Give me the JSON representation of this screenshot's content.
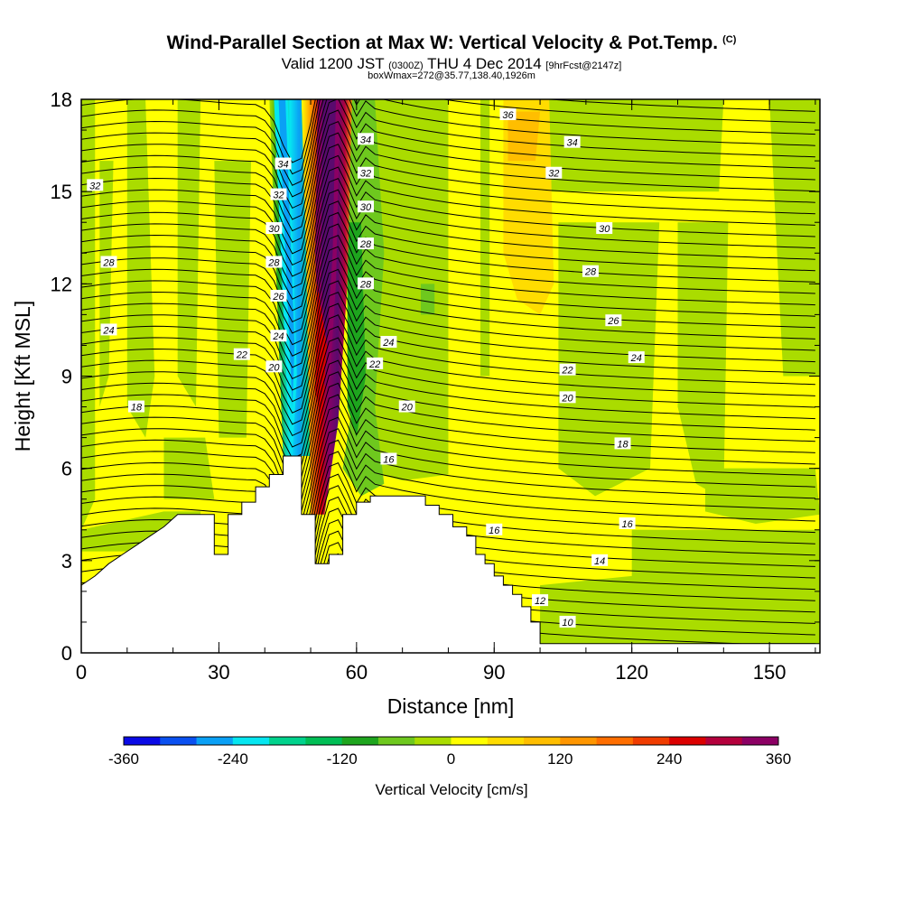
{
  "header": {
    "title": "Wind-Parallel Section at Max W: Vertical Velocity & Pot.Temp.",
    "copyright": "(C)",
    "valid_label": "Valid 1200 JST",
    "zulu": "(0300Z)",
    "date": "THU 4 Dec 2014",
    "forecast": "[9hrFcst@2147z]",
    "boxinfo": "boxWmax=272@35.77,138.40,1926m"
  },
  "chart_data": {
    "type": "heatmap",
    "xlabel": "Distance [nm]",
    "ylabel": "Height [Kft MSL]",
    "xlim": [
      0,
      161
    ],
    "ylim": [
      0,
      18
    ],
    "xticks": [
      "0",
      "30",
      "60",
      "90",
      "120",
      "150"
    ],
    "yticks": [
      "0",
      "3",
      "6",
      "9",
      "12",
      "15",
      "18"
    ],
    "colorbar": {
      "label": "Vertical Velocity [cm/s]",
      "ticks": [
        "-360",
        "-240",
        "-120",
        "0",
        "120",
        "240",
        "360"
      ],
      "levels": [
        -360,
        -320,
        -280,
        -240,
        -200,
        -160,
        -120,
        -80,
        -40,
        0,
        40,
        80,
        120,
        160,
        200,
        240,
        280,
        320,
        360
      ],
      "colors": [
        "#0a0ae6",
        "#0a50f0",
        "#0aa0f5",
        "#06e6f0",
        "#00d28c",
        "#00be55",
        "#1ea51e",
        "#6ec81e",
        "#aadc00",
        "#ffff00",
        "#ffdc00",
        "#ffbe00",
        "#ff9600",
        "#ff6e00",
        "#f03c00",
        "#dc0000",
        "#b4003c",
        "#8c0064"
      ]
    },
    "terrain_kft": [
      [
        0,
        2.2
      ],
      [
        3,
        2.5
      ],
      [
        6,
        2.9
      ],
      [
        9,
        3.2
      ],
      [
        12,
        3.5
      ],
      [
        15,
        3.8
      ],
      [
        18,
        4.1
      ],
      [
        21,
        4.5
      ],
      [
        29,
        4.5
      ],
      [
        29,
        3.2
      ],
      [
        32,
        3.2
      ],
      [
        32,
        4.5
      ],
      [
        35,
        4.5
      ],
      [
        35,
        4.9
      ],
      [
        38,
        4.9
      ],
      [
        38,
        5.4
      ],
      [
        41,
        5.4
      ],
      [
        41,
        5.8
      ],
      [
        44,
        5.8
      ],
      [
        44,
        6.4
      ],
      [
        48,
        6.4
      ],
      [
        48,
        4.5
      ],
      [
        51,
        4.5
      ],
      [
        51,
        2.9
      ],
      [
        54,
        2.9
      ],
      [
        54,
        3.2
      ],
      [
        57,
        3.2
      ],
      [
        57,
        4.5
      ],
      [
        60,
        4.5
      ],
      [
        60,
        4.9
      ],
      [
        63,
        4.9
      ],
      [
        63,
        5.1
      ],
      [
        75,
        5.1
      ],
      [
        75,
        4.8
      ],
      [
        78,
        4.8
      ],
      [
        78,
        4.5
      ],
      [
        81,
        4.5
      ],
      [
        81,
        4.1
      ],
      [
        84,
        4.1
      ],
      [
        84,
        3.8
      ],
      [
        86,
        3.8
      ],
      [
        86,
        3.2
      ],
      [
        88,
        3.2
      ],
      [
        88,
        2.9
      ],
      [
        90,
        2.9
      ],
      [
        90,
        2.5
      ],
      [
        92,
        2.5
      ],
      [
        92,
        2.2
      ],
      [
        94,
        2.2
      ],
      [
        94,
        1.9
      ],
      [
        96,
        1.9
      ],
      [
        96,
        1.5
      ],
      [
        98,
        1.5
      ],
      [
        98,
        1.0
      ],
      [
        100,
        1.0
      ],
      [
        100,
        0.3
      ],
      [
        161,
        0.3
      ]
    ],
    "updraft_band": {
      "bottom": [
        [
          51,
          4.5
        ],
        [
          58,
          6.5
        ],
        [
          58,
          18
        ]
      ],
      "top": [
        [
          49,
          18
        ],
        [
          50,
          13
        ],
        [
          51,
          8
        ]
      ],
      "peak_cm_s": 360
    },
    "downdraft_band": {
      "x_top": [
        41,
        48
      ],
      "x_bottom": [
        44,
        50
      ],
      "peak_cm_s": -280
    },
    "theta_contours": [
      {
        "value": "10",
        "x": 106,
        "y": 1.0
      },
      {
        "value": "12",
        "x": 100,
        "y": 1.7
      },
      {
        "value": "14",
        "x": 113,
        "y": 3.0
      },
      {
        "value": "16",
        "x": 119,
        "y": 4.2
      },
      {
        "value": "16",
        "x": 90,
        "y": 4.0
      },
      {
        "value": "16",
        "x": 67,
        "y": 6.3
      },
      {
        "value": "18",
        "x": 12,
        "y": 8.0
      },
      {
        "value": "18",
        "x": 118,
        "y": 6.8
      },
      {
        "value": "20",
        "x": 42,
        "y": 9.3
      },
      {
        "value": "20",
        "x": 71,
        "y": 8.0
      },
      {
        "value": "20",
        "x": 106,
        "y": 8.3
      },
      {
        "value": "22",
        "x": 35,
        "y": 9.7
      },
      {
        "value": "22",
        "x": 64,
        "y": 9.4
      },
      {
        "value": "22",
        "x": 106,
        "y": 9.2
      },
      {
        "value": "24",
        "x": 6,
        "y": 10.5
      },
      {
        "value": "24",
        "x": 43,
        "y": 10.3
      },
      {
        "value": "24",
        "x": 67,
        "y": 10.1
      },
      {
        "value": "24",
        "x": 121,
        "y": 9.6
      },
      {
        "value": "26",
        "x": 43,
        "y": 11.6
      },
      {
        "value": "26",
        "x": 116,
        "y": 10.8
      },
      {
        "value": "28",
        "x": 6,
        "y": 12.7
      },
      {
        "value": "28",
        "x": 42,
        "y": 12.7
      },
      {
        "value": "28",
        "x": 62,
        "y": 12.0
      },
      {
        "value": "28",
        "x": 111,
        "y": 12.4
      },
      {
        "value": "28",
        "x": 62,
        "y": 13.3
      },
      {
        "value": "30",
        "x": 42,
        "y": 13.8
      },
      {
        "value": "30",
        "x": 62,
        "y": 14.5
      },
      {
        "value": "30",
        "x": 114,
        "y": 13.8
      },
      {
        "value": "32",
        "x": 3,
        "y": 15.2
      },
      {
        "value": "32",
        "x": 43,
        "y": 14.9
      },
      {
        "value": "32",
        "x": 62,
        "y": 15.6
      },
      {
        "value": "32",
        "x": 103,
        "y": 15.6
      },
      {
        "value": "34",
        "x": 44,
        "y": 15.9
      },
      {
        "value": "34",
        "x": 62,
        "y": 16.7
      },
      {
        "value": "34",
        "x": 107,
        "y": 16.6
      },
      {
        "value": "36",
        "x": 93,
        "y": 17.5
      }
    ]
  }
}
